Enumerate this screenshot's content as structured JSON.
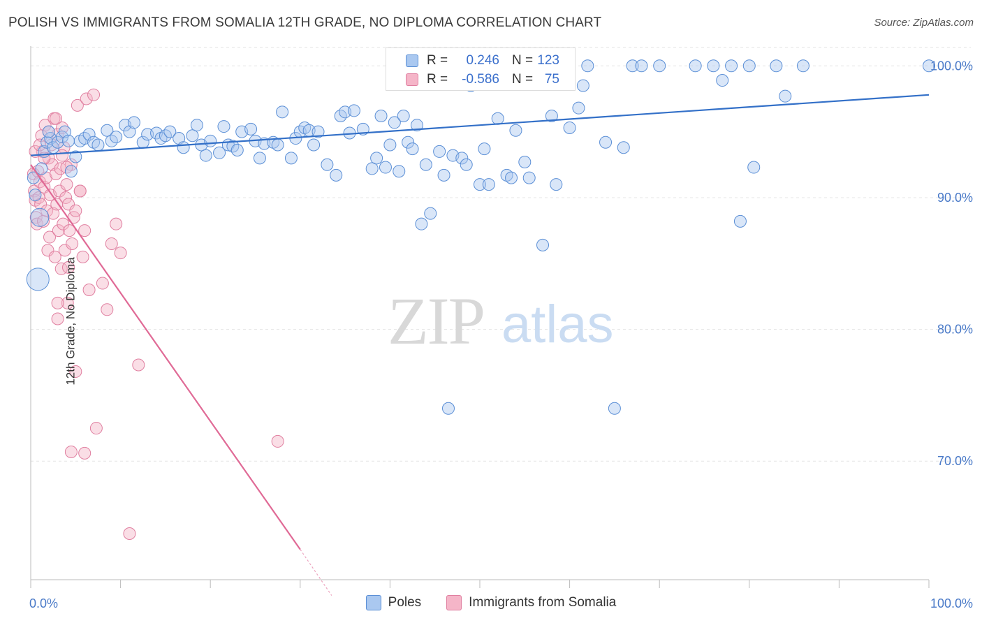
{
  "title": "POLISH VS IMMIGRANTS FROM SOMALIA 12TH GRADE, NO DIPLOMA CORRELATION CHART",
  "source": "Source: ZipAtlas.com",
  "watermark": {
    "zip": "ZIP",
    "atlas": "atlas"
  },
  "legend_stats": {
    "poles": {
      "r_label": "R =",
      "r_value": "0.246",
      "n_label": "N =",
      "n_value": "123"
    },
    "somalia": {
      "r_label": "R =",
      "r_value": "-0.586",
      "n_label": "N =",
      "n_value": "75"
    }
  },
  "colors": {
    "poles_fill": "#aac8f0",
    "poles_stroke": "#5b8fd6",
    "poles_line": "#3370c8",
    "somalia_fill": "#f5b5c8",
    "somalia_stroke": "#e07fa0",
    "somalia_line": "#e06a96",
    "tick_text": "#4a7ac8",
    "grid": "#e4e4e4"
  },
  "chart_data": {
    "type": "scatter",
    "title": "POLISH VS IMMIGRANTS FROM SOMALIA 12TH GRADE, NO DIPLOMA CORRELATION CHART",
    "xlabel": "",
    "ylabel": "12th Grade, No Diploma",
    "xlim": [
      0,
      100
    ],
    "ylim": [
      61,
      101.5
    ],
    "x_tick_labels": [
      "0.0%",
      "100.0%"
    ],
    "y_ticks": [
      70,
      80,
      90,
      100
    ],
    "y_tick_labels": [
      "70.0%",
      "80.0%",
      "90.0%",
      "100.0%"
    ],
    "grid": true,
    "legend": [
      "Poles",
      "Immigrants from Somalia"
    ],
    "series": [
      {
        "name": "Poles",
        "trend": {
          "x": [
            0,
            100
          ],
          "y": [
            93.2,
            97.8
          ]
        },
        "points": [
          [
            0.3,
            91.5
          ],
          [
            0.5,
            90.2
          ],
          [
            1.2,
            92.2
          ],
          [
            1.5,
            93.5
          ],
          [
            1.8,
            94.2
          ],
          [
            2.2,
            94.5
          ],
          [
            2.5,
            93.8
          ],
          [
            3.0,
            94.2
          ],
          [
            3.5,
            94.6
          ],
          [
            3.8,
            95.0
          ],
          [
            4.2,
            94.3
          ],
          [
            4.5,
            92.0
          ],
          [
            5.0,
            93.1
          ],
          [
            5.5,
            94.3
          ],
          [
            6.0,
            94.5
          ],
          [
            6.5,
            94.8
          ],
          [
            7.0,
            94.2
          ],
          [
            7.5,
            94.0
          ],
          [
            8.5,
            95.1
          ],
          [
            9.0,
            94.3
          ],
          [
            9.5,
            94.6
          ],
          [
            10.5,
            95.5
          ],
          [
            11.0,
            95.0
          ],
          [
            11.5,
            95.7
          ],
          [
            12.5,
            94.2
          ],
          [
            13.0,
            94.8
          ],
          [
            14.0,
            94.9
          ],
          [
            14.5,
            94.5
          ],
          [
            15.0,
            94.7
          ],
          [
            15.5,
            95.0
          ],
          [
            16.5,
            94.5
          ],
          [
            17.0,
            93.8
          ],
          [
            18.0,
            94.7
          ],
          [
            18.5,
            95.5
          ],
          [
            19.0,
            94.0
          ],
          [
            19.5,
            93.2
          ],
          [
            20.0,
            94.3
          ],
          [
            21.0,
            93.4
          ],
          [
            21.5,
            95.4
          ],
          [
            22.0,
            94.0
          ],
          [
            22.5,
            93.9
          ],
          [
            23.0,
            93.6
          ],
          [
            23.5,
            95.0
          ],
          [
            24.5,
            95.2
          ],
          [
            25.0,
            94.3
          ],
          [
            25.5,
            93.0
          ],
          [
            26.0,
            94.1
          ],
          [
            27.0,
            94.2
          ],
          [
            27.5,
            94.0
          ],
          [
            28.0,
            96.5
          ],
          [
            29.0,
            93.0
          ],
          [
            29.5,
            94.5
          ],
          [
            30.0,
            95.0
          ],
          [
            30.5,
            95.3
          ],
          [
            31.0,
            95.1
          ],
          [
            31.5,
            94.0
          ],
          [
            32.0,
            95.0
          ],
          [
            33.0,
            92.5
          ],
          [
            34.0,
            91.7
          ],
          [
            34.5,
            96.2
          ],
          [
            35.0,
            96.5
          ],
          [
            35.5,
            94.9
          ],
          [
            36.0,
            96.6
          ],
          [
            37.0,
            95.2
          ],
          [
            38.0,
            92.2
          ],
          [
            38.5,
            93.0
          ],
          [
            39.0,
            96.2
          ],
          [
            39.5,
            92.3
          ],
          [
            40.0,
            94.0
          ],
          [
            40.5,
            95.7
          ],
          [
            41.0,
            92.0
          ],
          [
            41.5,
            96.2
          ],
          [
            42.0,
            94.2
          ],
          [
            42.5,
            93.7
          ],
          [
            43.0,
            95.5
          ],
          [
            43.5,
            88.0
          ],
          [
            44.0,
            92.5
          ],
          [
            44.5,
            88.8
          ],
          [
            45.0,
            98.6
          ],
          [
            45.5,
            93.5
          ],
          [
            46.0,
            91.7
          ],
          [
            47.0,
            93.2
          ],
          [
            48.0,
            93.0
          ],
          [
            48.5,
            92.5
          ],
          [
            49.0,
            98.5
          ],
          [
            50.0,
            91.0
          ],
          [
            50.5,
            93.7
          ],
          [
            51.0,
            91.0
          ],
          [
            52.0,
            96.0
          ],
          [
            53.0,
            91.7
          ],
          [
            53.5,
            91.5
          ],
          [
            54.0,
            95.1
          ],
          [
            55.0,
            92.7
          ],
          [
            55.5,
            91.5
          ],
          [
            57.0,
            86.4
          ],
          [
            58.0,
            96.2
          ],
          [
            58.5,
            91.0
          ],
          [
            60.0,
            95.3
          ],
          [
            61.0,
            96.8
          ],
          [
            61.5,
            98.5
          ],
          [
            62.0,
            100.0
          ],
          [
            64.0,
            94.2
          ],
          [
            65.0,
            74.0
          ],
          [
            66.0,
            93.8
          ],
          [
            67.0,
            100.0
          ],
          [
            68.0,
            100.0
          ],
          [
            70.0,
            100.0
          ],
          [
            74.0,
            100.0
          ],
          [
            76.0,
            100.0
          ],
          [
            77.0,
            98.9
          ],
          [
            78.0,
            100.0
          ],
          [
            79.0,
            88.2
          ],
          [
            80.0,
            100.0
          ],
          [
            80.5,
            92.3
          ],
          [
            83.0,
            100.0
          ],
          [
            84.0,
            97.7
          ],
          [
            86.0,
            100.0
          ],
          [
            100.0,
            100.0
          ],
          [
            46.5,
            74.0
          ],
          [
            44.0,
            100.0
          ],
          [
            0.8,
            83.8
          ],
          [
            1.0,
            88.5
          ],
          [
            2.0,
            95.0
          ]
        ]
      },
      {
        "name": "Immigrants from Somalia",
        "trend": {
          "x": [
            0,
            30.0
          ],
          "y": [
            92.5,
            63.3
          ]
        },
        "trend_dashed": {
          "x": [
            30.0,
            33.5
          ],
          "y": [
            63.3,
            59.8
          ]
        },
        "points": [
          [
            0.3,
            91.8
          ],
          [
            0.4,
            90.5
          ],
          [
            0.5,
            89.8
          ],
          [
            0.6,
            88.5
          ],
          [
            0.7,
            88.0
          ],
          [
            0.8,
            92.0
          ],
          [
            0.9,
            90.0
          ],
          [
            1.0,
            91.2
          ],
          [
            1.1,
            89.5
          ],
          [
            1.2,
            94.7
          ],
          [
            1.3,
            93.5
          ],
          [
            1.4,
            88.2
          ],
          [
            1.5,
            90.8
          ],
          [
            1.6,
            95.5
          ],
          [
            1.7,
            91.5
          ],
          [
            1.8,
            89.0
          ],
          [
            1.9,
            86.0
          ],
          [
            2.0,
            93.0
          ],
          [
            2.1,
            87.0
          ],
          [
            2.2,
            90.2
          ],
          [
            2.3,
            94.0
          ],
          [
            2.4,
            92.5
          ],
          [
            2.5,
            88.8
          ],
          [
            2.6,
            96.0
          ],
          [
            2.7,
            85.5
          ],
          [
            2.8,
            91.8
          ],
          [
            2.9,
            89.5
          ],
          [
            3.0,
            94.8
          ],
          [
            3.1,
            87.5
          ],
          [
            3.2,
            90.5
          ],
          [
            3.3,
            92.2
          ],
          [
            3.4,
            84.6
          ],
          [
            3.5,
            95.3
          ],
          [
            3.6,
            88.0
          ],
          [
            3.7,
            93.8
          ],
          [
            3.8,
            86.0
          ],
          [
            3.9,
            90.0
          ],
          [
            4.0,
            91.0
          ],
          [
            4.1,
            82.0
          ],
          [
            4.2,
            89.5
          ],
          [
            4.3,
            87.5
          ],
          [
            4.5,
            92.5
          ],
          [
            4.6,
            86.5
          ],
          [
            4.8,
            88.5
          ],
          [
            5.0,
            89.0
          ],
          [
            5.2,
            97.0
          ],
          [
            5.5,
            90.5
          ],
          [
            5.8,
            85.5
          ],
          [
            6.0,
            87.5
          ],
          [
            6.2,
            97.5
          ],
          [
            6.5,
            83.0
          ],
          [
            7.0,
            97.8
          ],
          [
            7.3,
            72.5
          ],
          [
            8.0,
            83.5
          ],
          [
            8.5,
            81.5
          ],
          [
            9.5,
            88.0
          ],
          [
            10.0,
            85.8
          ],
          [
            11.0,
            64.5
          ],
          [
            12.0,
            77.3
          ],
          [
            27.5,
            71.5
          ],
          [
            5.0,
            76.8
          ],
          [
            6.0,
            70.6
          ],
          [
            4.5,
            70.7
          ],
          [
            3.0,
            80.8
          ],
          [
            9.0,
            86.5
          ],
          [
            1.5,
            93.0
          ],
          [
            2.0,
            95.0
          ],
          [
            0.5,
            93.5
          ],
          [
            3.5,
            93.2
          ],
          [
            4.0,
            92.3
          ],
          [
            2.8,
            96.0
          ],
          [
            1.0,
            94.0
          ],
          [
            4.2,
            84.7
          ],
          [
            3.0,
            82.0
          ],
          [
            5.5,
            90.5
          ]
        ]
      }
    ]
  }
}
